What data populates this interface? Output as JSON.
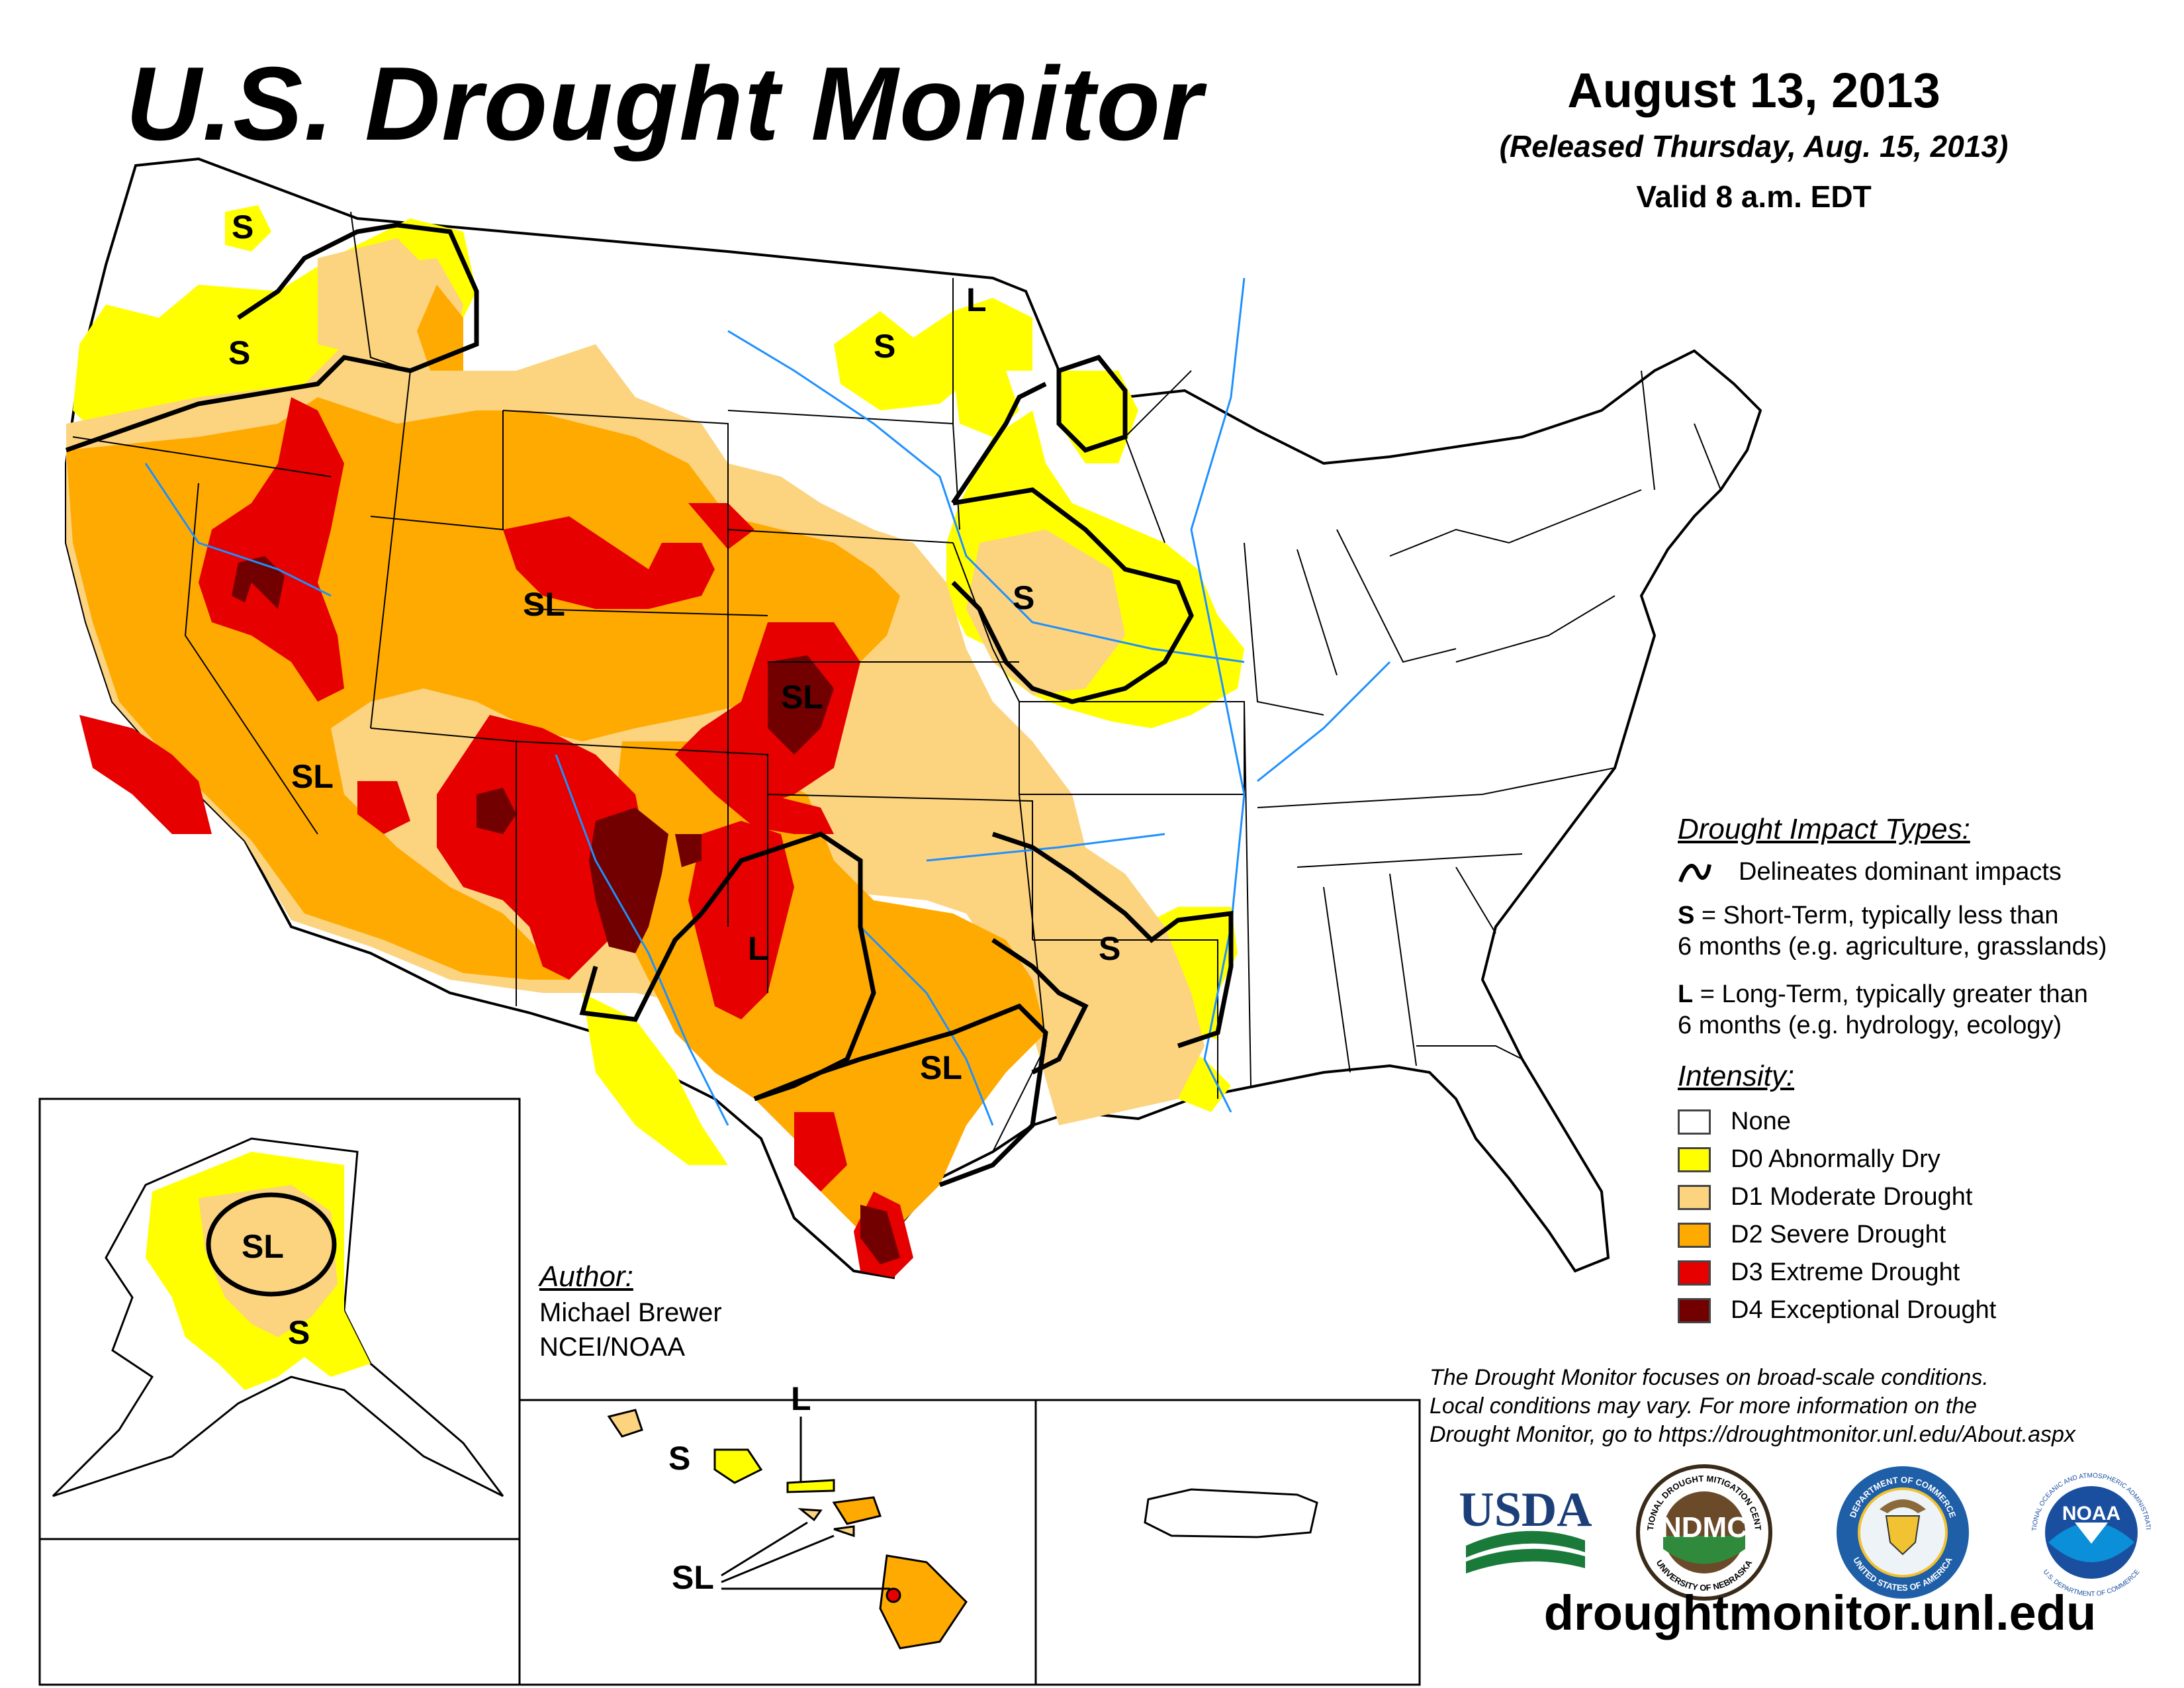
{
  "header": {
    "title": "U.S. Drought Monitor",
    "date": "August 13, 2013",
    "released": "(Released Thursday, Aug. 15, 2013)",
    "valid": "Valid 8 a.m. EDT"
  },
  "map_labels": {
    "s_washington": "S",
    "s_oregon": "S",
    "sl_utah": "SL",
    "sl_nevada": "SL",
    "sl_kansas": "SL",
    "l_texas_panhandle": "L",
    "sl_texas": "SL",
    "s_dakota": "S",
    "l_minnesota": "L",
    "s_iowa": "S",
    "s_louisiana": "S",
    "sl_alaska": "SL",
    "s_alaska": "S",
    "s_hawaii": "S",
    "l_hawaii": "L",
    "sl_hawaii": "SL"
  },
  "legend": {
    "impact_title": "Drought Impact Types:",
    "impact_line": "Delineates dominant impacts",
    "short_term_key": "S",
    "short_term_text": "= Short-Term, typically less than",
    "short_term_text2": "6 months (e.g. agriculture, grasslands)",
    "long_term_key": "L",
    "long_term_text": "= Long-Term, typically greater than",
    "long_term_text2": "6 months (e.g. hydrology, ecology)",
    "intensity_title": "Intensity:",
    "intensity": [
      {
        "label": "None",
        "color": "#ffffff"
      },
      {
        "label": "D0 Abnormally Dry",
        "color": "#ffff00"
      },
      {
        "label": "D1 Moderate Drought",
        "color": "#fcd37f"
      },
      {
        "label": "D2 Severe Drought",
        "color": "#ffaa00"
      },
      {
        "label": "D3 Extreme Drought",
        "color": "#e60000"
      },
      {
        "label": "D4 Exceptional Drought",
        "color": "#730000"
      }
    ]
  },
  "author": {
    "heading": "Author:",
    "name": "Michael Brewer",
    "org": "NCEI/NOAA"
  },
  "disclaimer": {
    "line1": "The Drought Monitor focuses on broad-scale conditions.",
    "line2": "Local conditions may vary. For more information on the",
    "line3": "Drought Monitor, go to https://droughtmonitor.unl.edu/About.aspx"
  },
  "logos": {
    "usda": "USDA",
    "ndmc": "NDMC",
    "ndmc_ring_top": "NATIONAL DROUGHT MITIGATION CENTER",
    "ndmc_ring_bottom": "UNIVERSITY OF NEBRASKA",
    "doc_ring_top": "DEPARTMENT OF COMMERCE",
    "doc_ring_bottom": "UNITED STATES OF AMERICA",
    "noaa": "NOAA",
    "noaa_ring_top": "NATIONAL OCEANIC AND ATMOSPHERIC ADMINISTRATION",
    "noaa_ring_bottom": "U.S. DEPARTMENT OF COMMERCE"
  },
  "website": "droughtmonitor.unl.edu"
}
